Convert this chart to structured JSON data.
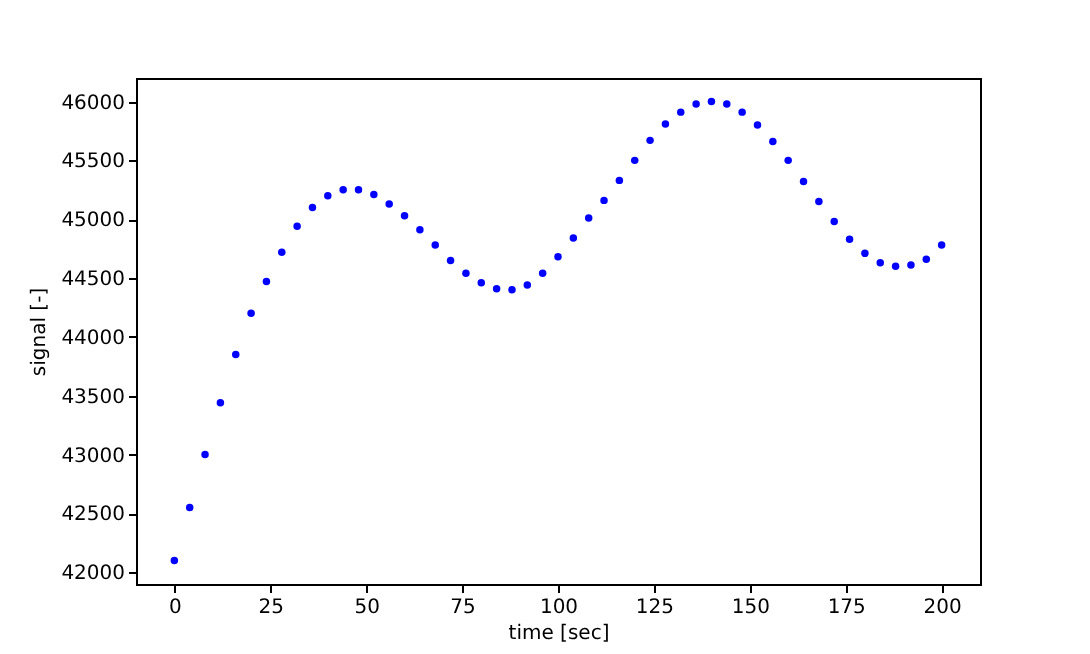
{
  "chart_data": {
    "type": "scatter",
    "xlabel": "time [sec]",
    "ylabel": "signal [-]",
    "marker": "circle",
    "x": [
      0,
      4,
      8,
      12,
      16,
      20,
      24,
      28,
      32,
      36,
      40,
      44,
      48,
      52,
      56,
      60,
      64,
      68,
      72,
      76,
      80,
      84,
      88,
      92,
      96,
      100,
      104,
      108,
      112,
      116,
      120,
      124,
      128,
      132,
      136,
      140,
      144,
      148,
      152,
      156,
      160,
      164,
      168,
      172,
      176,
      180,
      184,
      188,
      192,
      196,
      200
    ],
    "series": [
      {
        "color": "#0000ff",
        "values": [
          42100,
          42550,
          43000,
          43440,
          43850,
          44200,
          44470,
          44720,
          44940,
          45100,
          45200,
          45250,
          45250,
          45210,
          45130,
          45030,
          44910,
          44780,
          44650,
          44540,
          44460,
          44410,
          44400,
          44440,
          44540,
          44680,
          44840,
          45010,
          45160,
          45330,
          45500,
          45670,
          45810,
          45910,
          45980,
          46000,
          45980,
          45910,
          45800,
          45660,
          45500,
          45320,
          45150,
          44980,
          44830,
          44710,
          44630,
          44600,
          44610,
          44660,
          44780
        ]
      }
    ],
    "xlim": [
      -10,
      210
    ],
    "xticks": [
      0,
      25,
      50,
      75,
      100,
      125,
      150,
      175,
      200
    ],
    "ylim": [
      41900,
      46200
    ],
    "yticks": [
      42000,
      42500,
      43000,
      43500,
      44000,
      44500,
      45000,
      45500,
      46000
    ],
    "grid": false,
    "legend": false
  }
}
